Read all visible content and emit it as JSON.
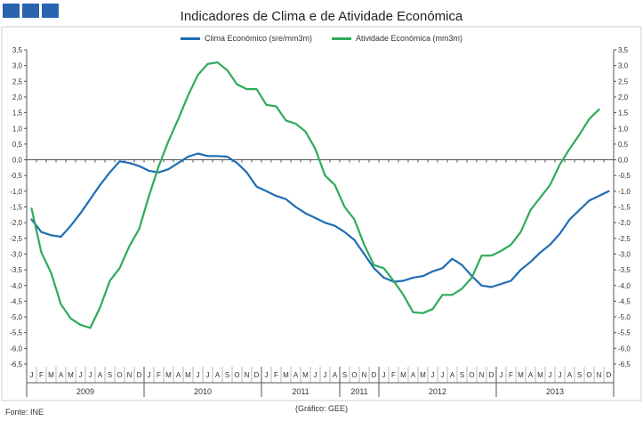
{
  "header": {
    "logo_color": "#2a63b0"
  },
  "footer": {
    "source": "Fonte: INE",
    "credit": "(Gráfico: GEE)"
  },
  "chart_data": {
    "type": "line",
    "title": "Indicadores de Clima e de Atividade Económica",
    "xlabel": "",
    "ylabel": "",
    "ylim": [
      -6.5,
      3.5
    ],
    "y_ticks": [
      "-6,5",
      "-6,0",
      "-5,5",
      "-5,0",
      "-4,5",
      "-4,0",
      "-3,5",
      "-3,0",
      "-2,5",
      "-2,0",
      "-1,5",
      "-1,0",
      "-0,5",
      "0,0",
      "0,5",
      "1,0",
      "1,5",
      "2,0",
      "2,5",
      "3,0",
      "3,5"
    ],
    "grid": false,
    "legend_position": "top-center",
    "month_labels": [
      "J",
      "F",
      "M",
      "A",
      "M",
      "J",
      "J",
      "A",
      "S",
      "O",
      "N",
      "D",
      "J",
      "F",
      "M",
      "A",
      "M",
      "J",
      "J",
      "A",
      "S",
      "O",
      "N",
      "D",
      "J",
      "F",
      "M",
      "A",
      "M",
      "J",
      "J",
      "A",
      "S",
      "O",
      "N",
      "D",
      "J",
      "F",
      "M",
      "A",
      "M",
      "J",
      "J",
      "A",
      "S",
      "O",
      "N",
      "D",
      "J",
      "F",
      "M",
      "A",
      "M",
      "J",
      "J",
      "A",
      "S",
      "O",
      "N",
      "D"
    ],
    "year_groups": [
      {
        "label": "2009",
        "start": 0,
        "end": 11
      },
      {
        "label": "2010",
        "start": 12,
        "end": 23
      },
      {
        "label": "2011",
        "start": 24,
        "end": 31
      },
      {
        "label": "2011",
        "start": 32,
        "end": 35
      },
      {
        "label": "2012",
        "start": 36,
        "end": 47
      },
      {
        "label": "2013",
        "start": 48,
        "end": 59
      }
    ],
    "series": [
      {
        "name": "Clima Económico (sre/mm3m)",
        "color": "#1f6db3",
        "values": [
          -1.9,
          -2.3,
          -2.4,
          -2.45,
          -2.1,
          -1.7,
          -1.25,
          -0.8,
          -0.4,
          -0.05,
          -0.1,
          -0.2,
          -0.35,
          -0.4,
          -0.3,
          -0.1,
          0.1,
          0.2,
          0.12,
          0.12,
          0.1,
          -0.1,
          -0.4,
          -0.85,
          -1.0,
          -1.15,
          -1.25,
          -1.5,
          -1.7,
          -1.85,
          -2.0,
          -2.1,
          -2.3,
          -2.55,
          -3.0,
          -3.45,
          -3.75,
          -3.88,
          -3.85,
          -3.75,
          -3.7,
          -3.55,
          -3.45,
          -3.15,
          -3.35,
          -3.7,
          -4.0,
          -4.05,
          -3.95,
          -3.85,
          -3.5,
          -3.25,
          -2.95,
          -2.7,
          -2.35,
          -1.9,
          -1.6,
          -1.3,
          -1.15,
          -1.0
        ]
      },
      {
        "name": "Atividade Económica (mm3m)",
        "color": "#2eab5a",
        "values": [
          -1.55,
          -2.95,
          -3.6,
          -4.6,
          -5.05,
          -5.25,
          -5.35,
          -4.7,
          -3.85,
          -3.45,
          -2.75,
          -2.2,
          -1.15,
          -0.2,
          0.6,
          1.3,
          2.05,
          2.7,
          3.05,
          3.1,
          2.85,
          2.4,
          2.25,
          2.25,
          1.75,
          1.7,
          1.25,
          1.15,
          0.9,
          0.35,
          -0.5,
          -0.8,
          -1.5,
          -1.9,
          -2.7,
          -3.35,
          -3.45,
          -3.85,
          -4.3,
          -4.85,
          -4.88,
          -4.75,
          -4.3,
          -4.3,
          -4.1,
          -3.75,
          -3.05,
          -3.05,
          -2.9,
          -2.7,
          -2.3,
          -1.6,
          -1.2,
          -0.8,
          -0.15,
          0.35,
          0.8,
          1.3,
          1.6,
          null
        ]
      }
    ]
  }
}
